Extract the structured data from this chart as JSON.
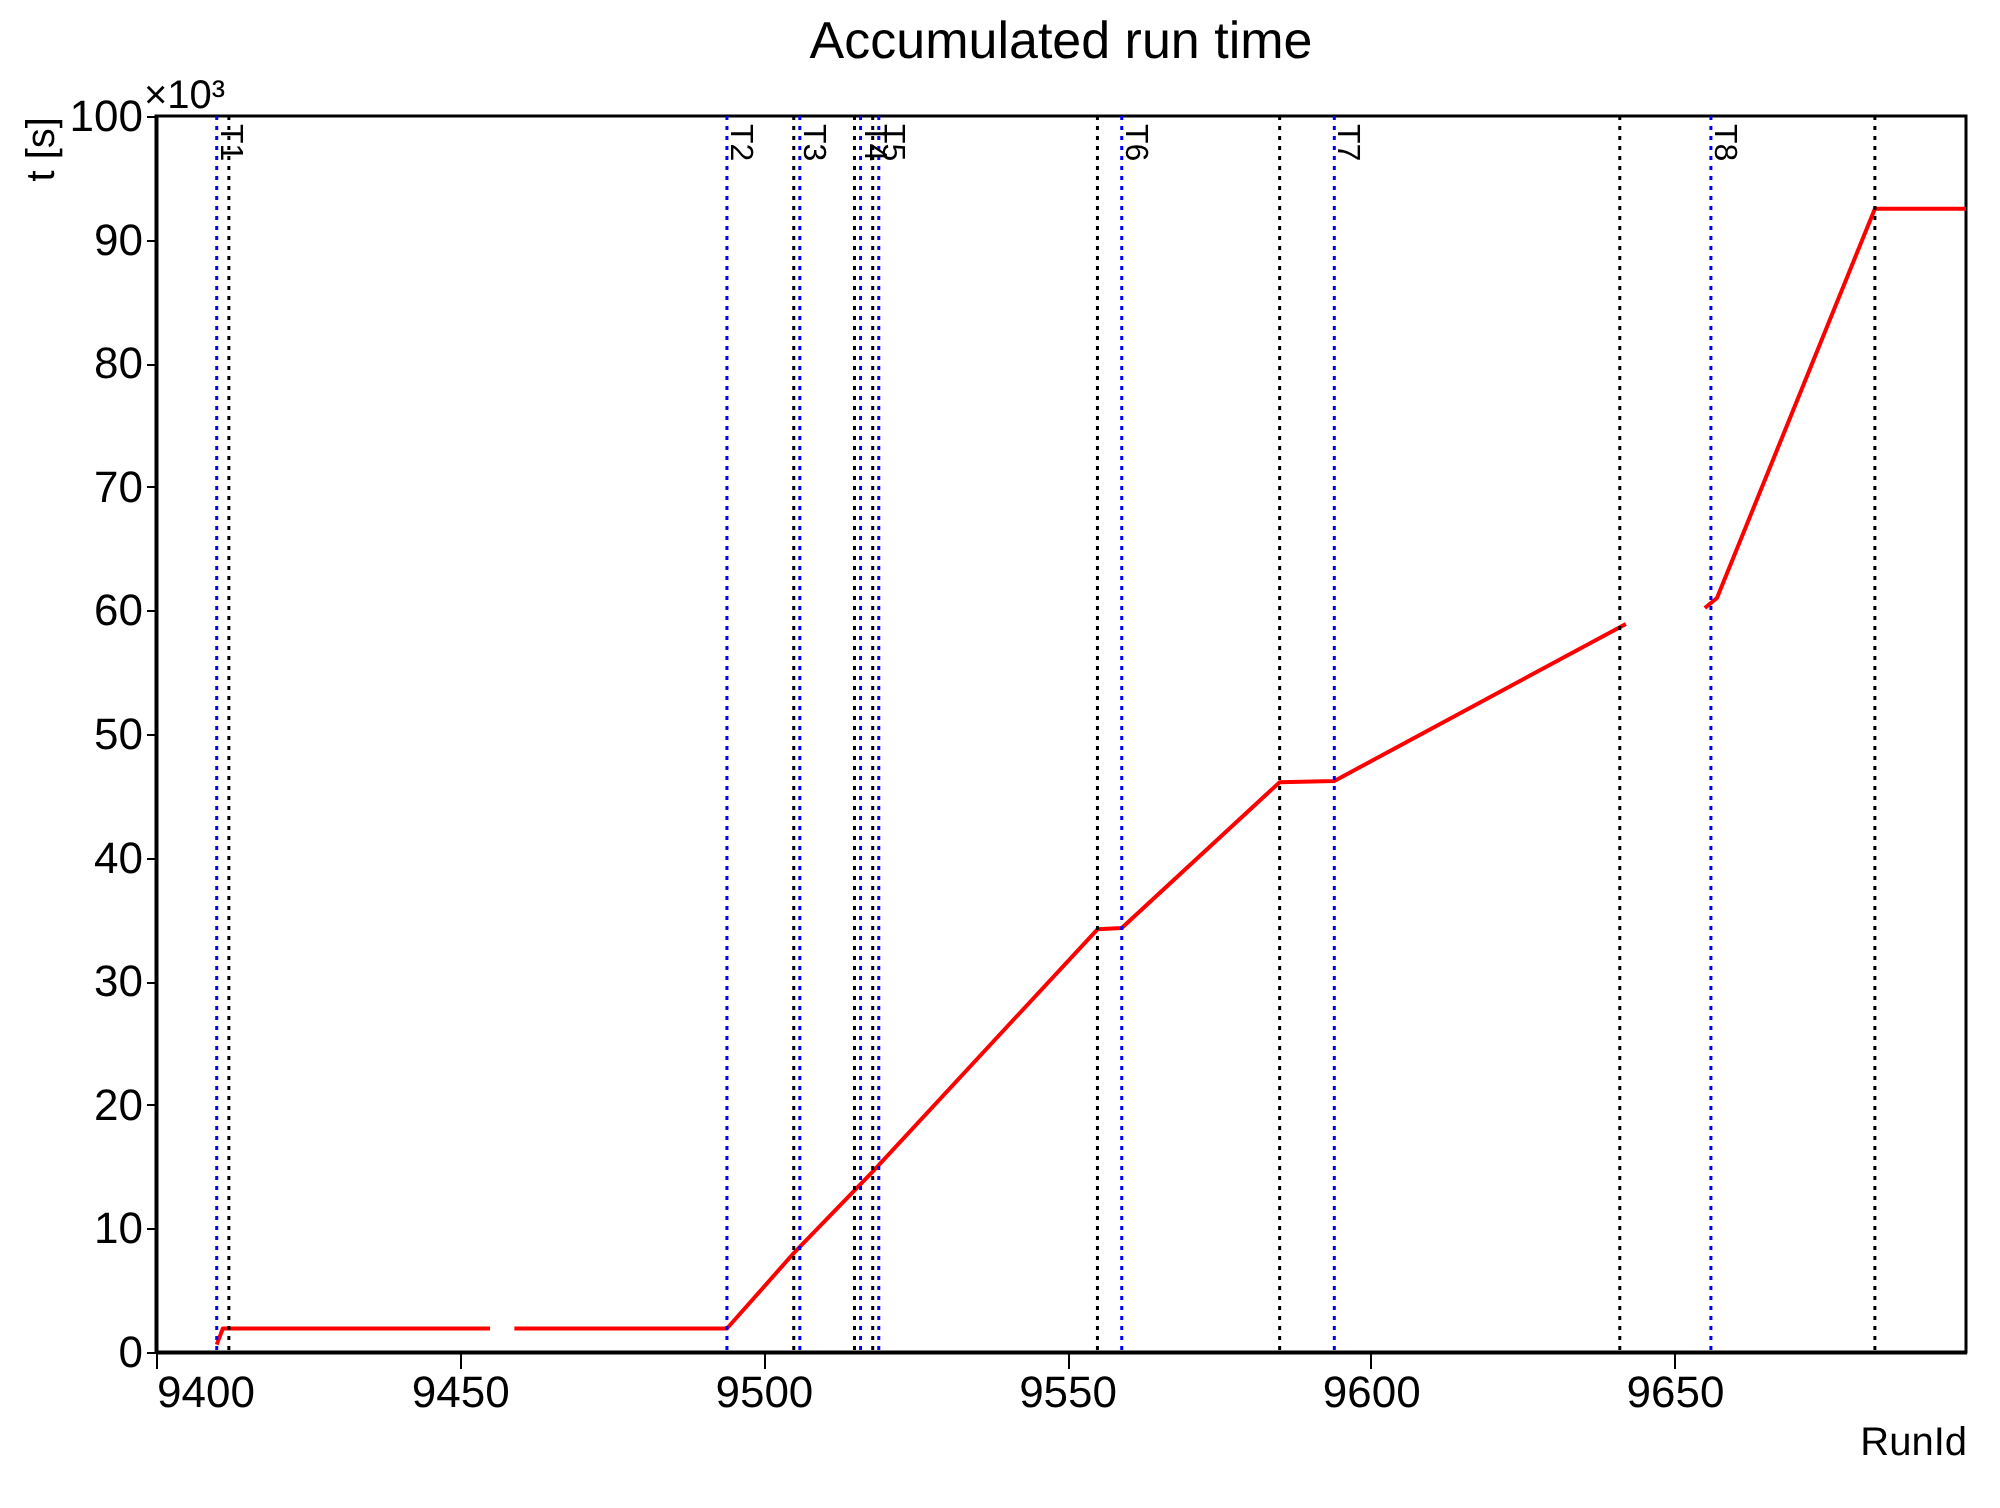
{
  "chart_data": {
    "type": "line",
    "title": "Accumulated run time",
    "xlabel": "RunId",
    "ylabel": "t [s]",
    "x": [
      9410,
      9411,
      9455,
      9457,
      9459,
      9494,
      9505,
      9518,
      9555,
      9559,
      9585,
      9594,
      9642,
      9648,
      9655,
      9657,
      9683,
      9698
    ],
    "series": [
      {
        "color": "#ff0000",
        "values": [
          0.6,
          1.9,
          1.9,
          null,
          1.9,
          1.9,
          8.0,
          14.6,
          34.2,
          34.3,
          46.1,
          46.2,
          58.9,
          null,
          60.2,
          61.0,
          92.5,
          92.5
        ]
      }
    ],
    "xlim": [
      9400,
      9698
    ],
    "xticks": [
      9400,
      9450,
      9500,
      9550,
      9600,
      9650
    ],
    "ylim": [
      0,
      100
    ],
    "yticks": [
      0,
      10,
      20,
      30,
      40,
      50,
      60,
      70,
      80,
      90,
      100
    ],
    "annotations": [
      "×10³"
    ],
    "ref_lines": [
      {
        "axis": "x",
        "value": 9410,
        "label": "T1",
        "color": "#0000ff",
        "line_style": "dotted"
      },
      {
        "axis": "x",
        "value": 9412,
        "color": "#000000",
        "line_style": "dotted"
      },
      {
        "axis": "x",
        "value": 9494,
        "label": "T2",
        "color": "#0000ff",
        "line_style": "dotted"
      },
      {
        "axis": "x",
        "value": 9505,
        "color": "#000000",
        "line_style": "dotted"
      },
      {
        "axis": "x",
        "value": 9506,
        "label": "T3",
        "color": "#0000ff",
        "line_style": "dotted"
      },
      {
        "axis": "x",
        "value": 9515,
        "color": "#000000",
        "line_style": "dotted"
      },
      {
        "axis": "x",
        "value": 9516,
        "label": "T4",
        "color": "#0000ff",
        "line_style": "dotted"
      },
      {
        "axis": "x",
        "value": 9518,
        "color": "#000000",
        "line_style": "dotted"
      },
      {
        "axis": "x",
        "value": 9519,
        "label": "T5",
        "color": "#0000ff",
        "line_style": "dotted"
      },
      {
        "axis": "x",
        "value": 9555,
        "color": "#000000",
        "line_style": "dotted"
      },
      {
        "axis": "x",
        "value": 9559,
        "label": "T6",
        "color": "#0000ff",
        "line_style": "dotted"
      },
      {
        "axis": "x",
        "value": 9585,
        "color": "#000000",
        "line_style": "dotted"
      },
      {
        "axis": "x",
        "value": 9594,
        "label": "T7",
        "color": "#0000ff",
        "line_style": "dotted"
      },
      {
        "axis": "x",
        "value": 9641,
        "color": "#000000",
        "line_style": "dotted"
      },
      {
        "axis": "x",
        "value": 9656,
        "label": "T8",
        "color": "#0000ff",
        "line_style": "dotted"
      },
      {
        "axis": "x",
        "value": 9683,
        "color": "#000000",
        "line_style": "dotted"
      }
    ],
    "grid": false,
    "legend": false,
    "line_style": "solid",
    "marker": "none"
  }
}
